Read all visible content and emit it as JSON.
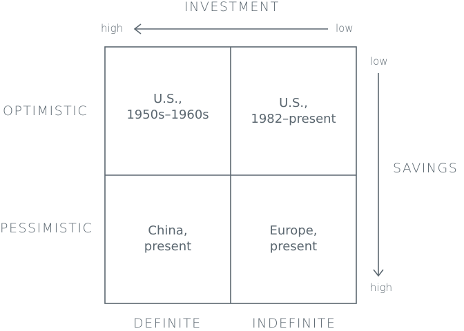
{
  "top_axis": {
    "title": "INVESTMENT",
    "left_label": "high",
    "right_label": "low"
  },
  "right_axis": {
    "title": "SAVINGS",
    "top_label": "low",
    "bottom_label": "high"
  },
  "row_labels": [
    "OPTIMISTIC",
    "PESSIMISTIC"
  ],
  "column_labels": [
    "DEFINITE",
    "INDEFINITE"
  ],
  "cells": {
    "top_left": [
      "U.S.,",
      "1950s–1960s"
    ],
    "top_right": [
      "U.S.,",
      "1982–present"
    ],
    "bottom_left": [
      "China,",
      "present"
    ],
    "bottom_right": [
      "Europe,",
      "present"
    ]
  },
  "colors": {
    "ink": "#5b6770",
    "background": "#ffffff"
  }
}
